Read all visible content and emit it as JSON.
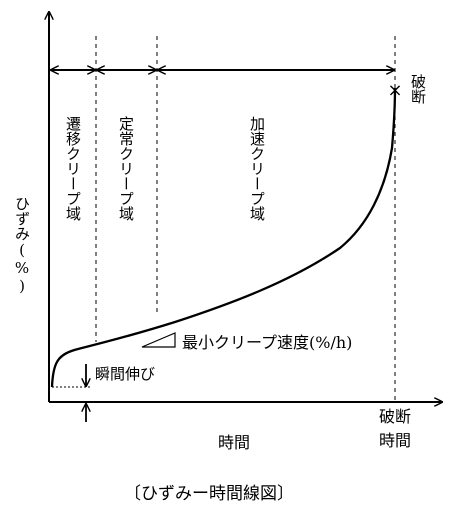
{
  "diagram": {
    "caption": "〔ひずみー時間線図〕",
    "y_axis_label": "ひずみ(%)",
    "x_axis_label": "時間",
    "rupture_label": "破断",
    "rupture_time_label_1": "破断",
    "rupture_time_label_2": "時間",
    "region_1": "遷移クリープ域",
    "region_2": "定常クリープ域",
    "region_3": "加速クリープ域",
    "min_rate_label": "最小クリープ速度(%/h)",
    "instant_label": "瞬間伸び",
    "rupture_mark": "×"
  }
}
